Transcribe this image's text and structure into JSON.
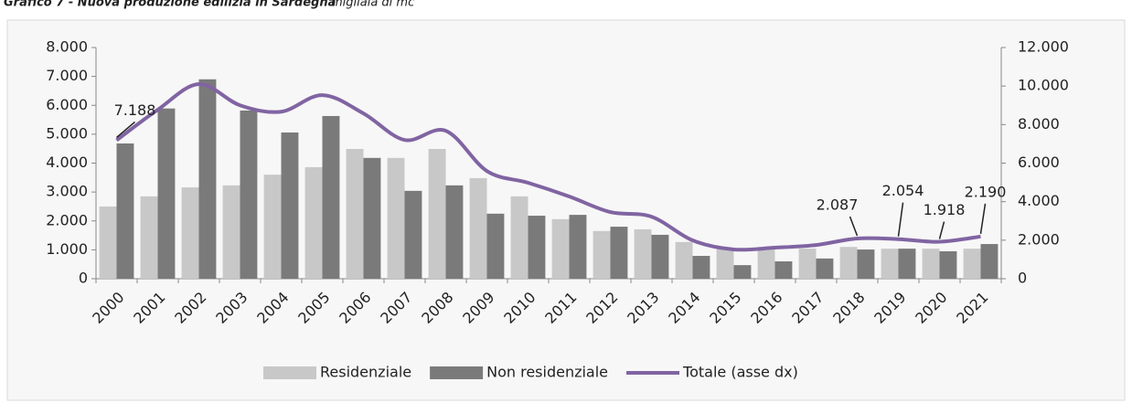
{
  "chart_data": {
    "type": "bar",
    "title": "Grafico 7 - Nuova produzione edilizia in Sardegna",
    "subtitle": "migliaia di mc",
    "categories": [
      "2000",
      "2001",
      "2002",
      "2003",
      "2004",
      "2005",
      "2006",
      "2007",
      "2008",
      "2009",
      "2010",
      "2011",
      "2012",
      "2013",
      "2014",
      "2015",
      "2016",
      "2017",
      "2018",
      "2019",
      "2020",
      "2021"
    ],
    "series": [
      {
        "name": "Residenziale",
        "color": "#c8c8c8",
        "type": "bar",
        "values": [
          2500,
          2850,
          3160,
          3230,
          3600,
          3860,
          4490,
          4180,
          4490,
          3480,
          2850,
          2060,
          1650,
          1710,
          1270,
          1040,
          1100,
          1040,
          1100,
          1040,
          1040,
          1040
        ]
      },
      {
        "name": "Non residenziale",
        "color": "#7a7a7a",
        "type": "bar",
        "values": [
          4680,
          5890,
          6900,
          5820,
          5060,
          5630,
          4180,
          3040,
          3230,
          2250,
          2180,
          2210,
          1800,
          1520,
          790,
          470,
          600,
          700,
          1010,
          1040,
          950,
          1200
        ]
      },
      {
        "name": "Totale (asse dx)",
        "color": "#8064a2",
        "type": "line",
        "axis": "y2",
        "values": [
          7188,
          8770,
          10100,
          9000,
          8670,
          9530,
          8580,
          7200,
          7680,
          5590,
          4980,
          4270,
          3460,
          3220,
          1990,
          1520,
          1610,
          1750,
          2087,
          2054,
          1918,
          2190
        ],
        "value_labels": [
          "7.188",
          null,
          null,
          null,
          null,
          null,
          null,
          null,
          null,
          null,
          null,
          null,
          null,
          null,
          null,
          null,
          null,
          null,
          "2.087",
          "2.054",
          "1.918",
          "2.190"
        ]
      }
    ],
    "ylim": [
      0,
      8000
    ],
    "yticks": [
      {
        "value": 0,
        "label": "0"
      },
      {
        "value": 1000,
        "label": "1.000"
      },
      {
        "value": 2000,
        "label": "2.000"
      },
      {
        "value": 3000,
        "label": "3.000"
      },
      {
        "value": 4000,
        "label": "4.000"
      },
      {
        "value": 5000,
        "label": "5.000"
      },
      {
        "value": 6000,
        "label": "6.000"
      },
      {
        "value": 7000,
        "label": "7.000"
      },
      {
        "value": 8000,
        "label": "8.000"
      }
    ],
    "y2lim": [
      0,
      12000
    ],
    "y2ticks": [
      {
        "value": 0,
        "label": "0"
      },
      {
        "value": 2000,
        "label": "2.000"
      },
      {
        "value": 4000,
        "label": "4.000"
      },
      {
        "value": 6000,
        "label": "6.000"
      },
      {
        "value": 8000,
        "label": "8.000"
      },
      {
        "value": 10000,
        "label": "10.000"
      },
      {
        "value": 12000,
        "label": "12.000"
      }
    ],
    "legend": "bottom",
    "grid": false
  }
}
